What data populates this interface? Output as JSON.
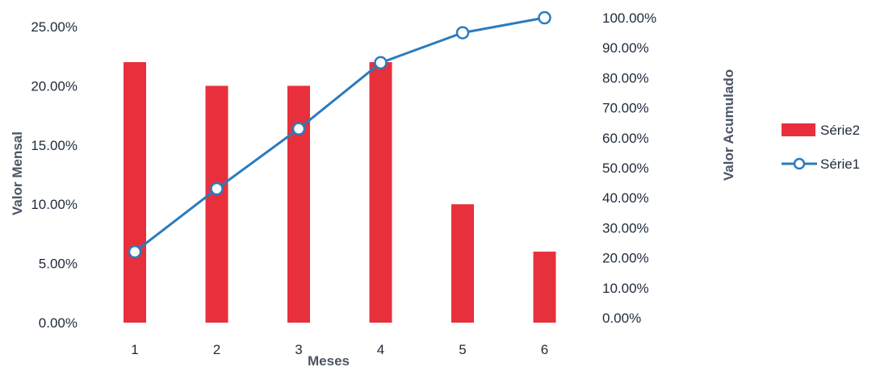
{
  "chart_data": {
    "type": "bar",
    "categories": [
      "1",
      "2",
      "3",
      "4",
      "5",
      "6"
    ],
    "series": [
      {
        "name": "Série2",
        "type": "bar",
        "axis": "left",
        "values": [
          0.22,
          0.2,
          0.2,
          0.22,
          0.1,
          0.06
        ],
        "color": "#e8303c"
      },
      {
        "name": "Série1",
        "type": "line",
        "axis": "right",
        "values": [
          0.22,
          0.43,
          0.63,
          0.85,
          0.95,
          1.0
        ],
        "color": "#2b7bbd",
        "marker": "open-circle"
      }
    ],
    "xlabel": "Meses",
    "ylabel_left": "Valor Mensal",
    "ylabel_right": "Valor Acumulado",
    "ylim_left": [
      0,
      0.25
    ],
    "ylim_right": [
      0,
      1.0
    ],
    "yticks_left": [
      "0.00%",
      "5.00%",
      "10.00%",
      "15.00%",
      "20.00%",
      "25.00%"
    ],
    "yticks_right": [
      "0.00%",
      "10.00%",
      "20.00%",
      "30.00%",
      "40.00%",
      "50.00%",
      "60.00%",
      "70.00%",
      "80.00%",
      "90.00%",
      "100.00%"
    ],
    "grid": false,
    "legend": "right"
  }
}
